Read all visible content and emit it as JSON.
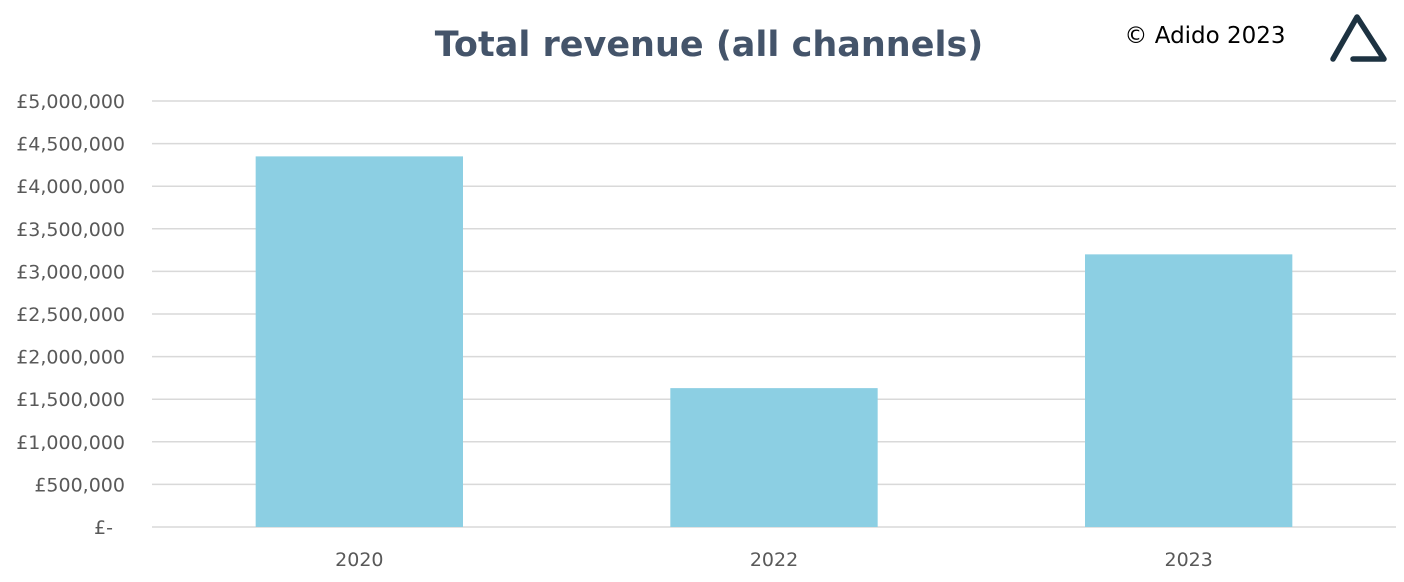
{
  "watermark": "© Adido 2023",
  "logo": {
    "icon": "adido-triangle-logo",
    "color": "#1d3241"
  },
  "colors": {
    "bar": "#8ccfe3",
    "grid": "#d9d9d9",
    "title": "#44546a",
    "ticks": "#595959"
  },
  "chart_data": {
    "type": "bar",
    "title": "Total revenue (all channels)",
    "xlabel": "",
    "ylabel": "",
    "categories": [
      "2020",
      "2022",
      "2023"
    ],
    "values": [
      4350000,
      1630000,
      3200000
    ],
    "ylim": [
      0,
      5000000
    ],
    "yticks": [
      0,
      500000,
      1000000,
      1500000,
      2000000,
      2500000,
      3000000,
      3500000,
      4000000,
      4500000,
      5000000
    ],
    "ytick_labels": [
      "£-",
      "£500,000",
      "£1,000,000",
      "£1,500,000",
      "£2,000,000",
      "£2,500,000",
      "£3,000,000",
      "£3,500,000",
      "£4,000,000",
      "£4,500,000",
      "£5,000,000"
    ],
    "grid": true,
    "legend": "none"
  }
}
